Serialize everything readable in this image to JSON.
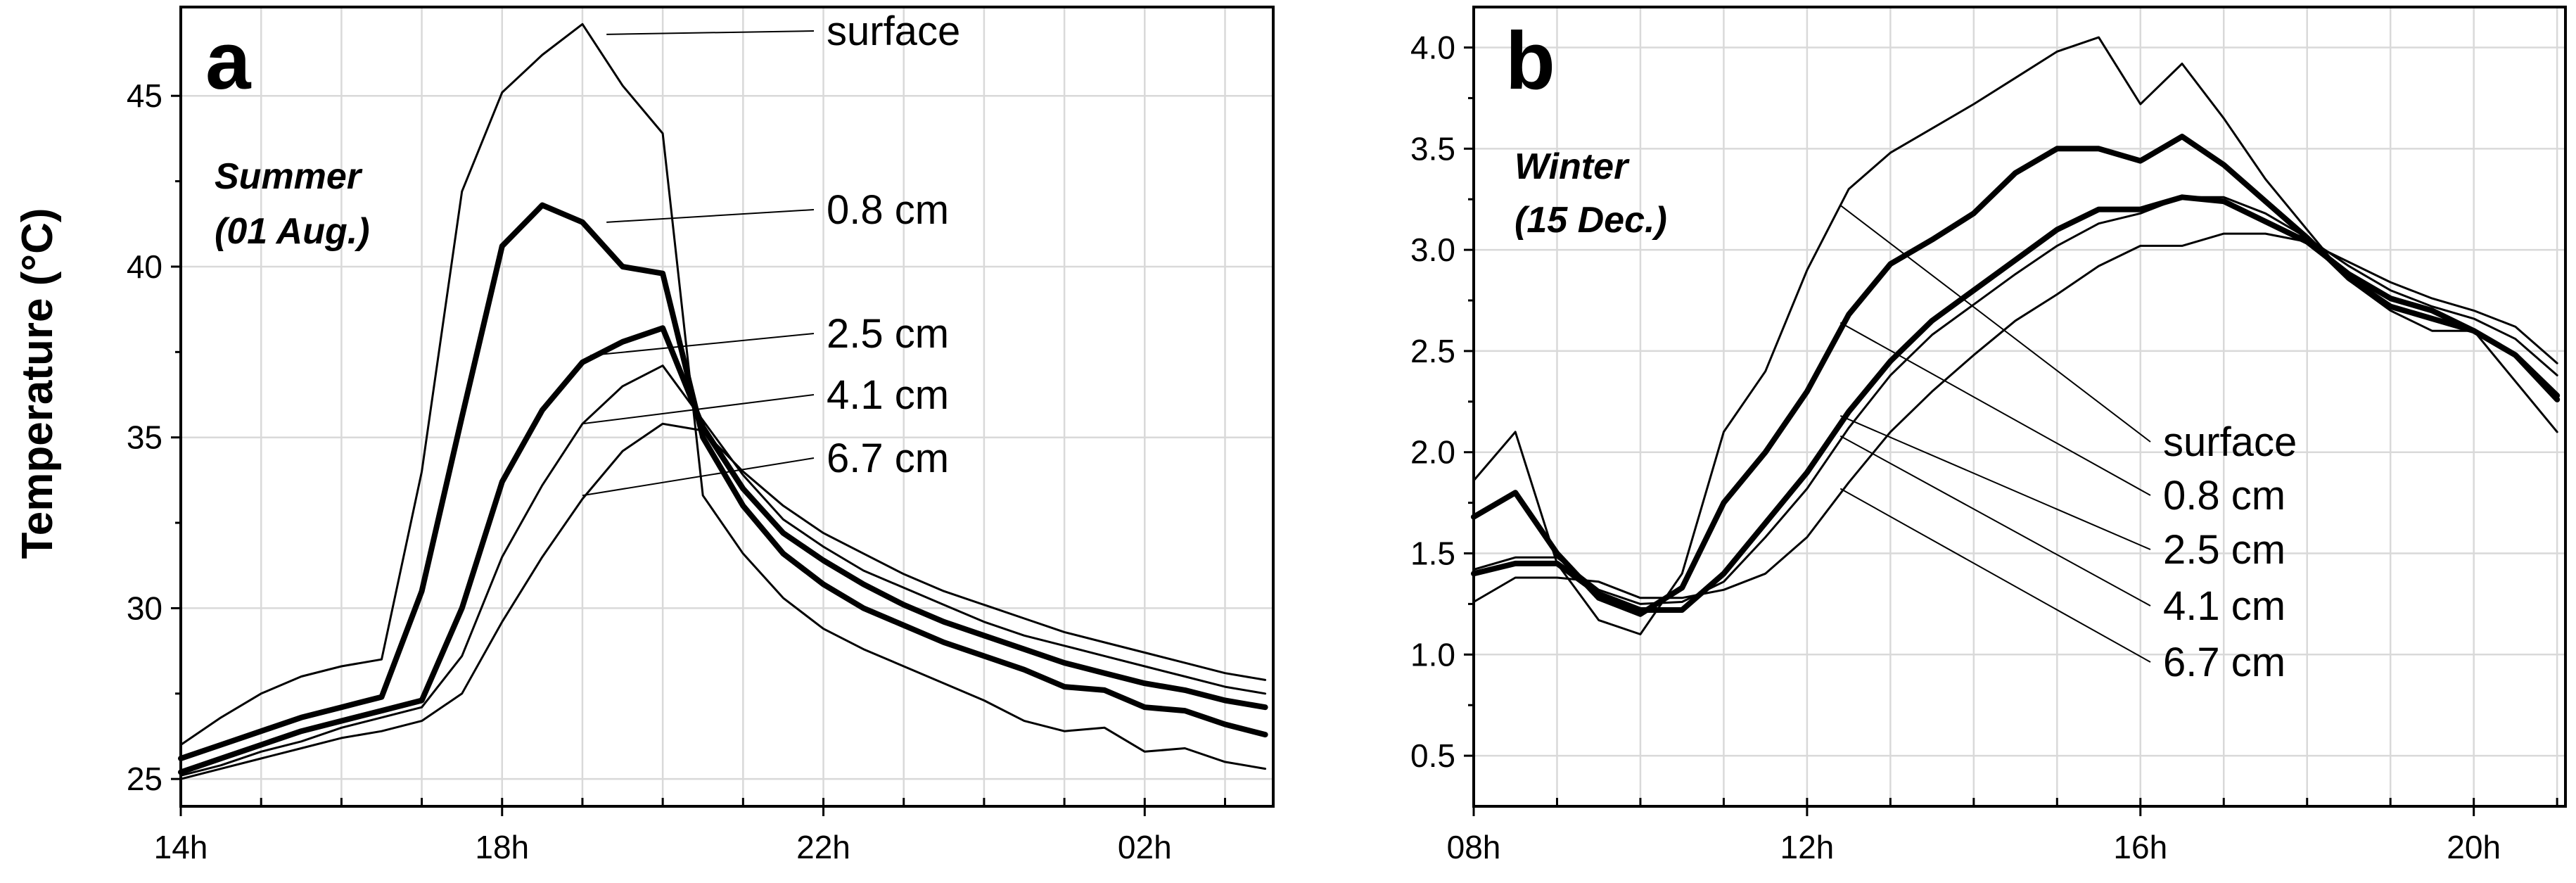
{
  "y_axis_label": "Temperature (°C)",
  "chart_data": [
    {
      "type": "line",
      "panel": "a",
      "annotation": "Summer",
      "annotation_date": "(01 Aug.)",
      "xlabel": "",
      "ylabel": "Temperature (°C)",
      "xlim": [
        14,
        27.6
      ],
      "ylim": [
        24.2,
        47.6
      ],
      "xticks": [
        14,
        18,
        22,
        26
      ],
      "xtick_labels": [
        "14h",
        "18h",
        "22h",
        "02h"
      ],
      "yticks": [
        25,
        30,
        35,
        40,
        45
      ],
      "ytick_labels": [
        "25",
        "30",
        "35",
        "40",
        "45"
      ],
      "x": [
        14,
        14.5,
        15,
        15.5,
        16,
        16.5,
        17,
        17.5,
        18,
        18.5,
        19,
        19.5,
        20,
        20.5,
        21,
        21.5,
        22,
        22.5,
        23,
        23.5,
        24,
        24.5,
        25,
        25.5,
        26,
        26.5,
        27,
        27.5
      ],
      "series": [
        {
          "name": "surface",
          "weight": "thin",
          "label_anchor": [
            19.3,
            46.8
          ],
          "values": [
            26.0,
            26.8,
            27.5,
            28.0,
            28.3,
            28.5,
            34.0,
            42.2,
            45.1,
            46.2,
            47.1,
            45.3,
            43.9,
            33.3,
            31.6,
            30.3,
            29.4,
            28.8,
            28.3,
            27.8,
            27.3,
            26.7,
            26.4,
            26.5,
            25.8,
            25.9,
            25.5,
            25.3
          ]
        },
        {
          "name": "0.8 cm",
          "weight": "bold",
          "label_anchor": [
            19.3,
            41.3
          ],
          "values": [
            25.6,
            26.0,
            26.4,
            26.8,
            27.1,
            27.4,
            30.5,
            35.6,
            40.6,
            41.8,
            41.3,
            40.0,
            39.8,
            35.0,
            33.0,
            31.6,
            30.7,
            30.0,
            29.5,
            29.0,
            28.6,
            28.2,
            27.7,
            27.6,
            27.1,
            27.0,
            26.6,
            26.3
          ]
        },
        {
          "name": "2.5 cm",
          "weight": "bold",
          "label_anchor": [
            19.1,
            37.4
          ],
          "values": [
            25.2,
            25.6,
            26.0,
            26.4,
            26.7,
            27.0,
            27.3,
            30.0,
            33.7,
            35.8,
            37.2,
            37.8,
            38.2,
            35.3,
            33.5,
            32.2,
            31.4,
            30.7,
            30.1,
            29.6,
            29.2,
            28.8,
            28.4,
            28.1,
            27.8,
            27.6,
            27.3,
            27.1
          ]
        },
        {
          "name": "4.1 cm",
          "weight": "thin",
          "label_anchor": [
            19.0,
            35.4
          ],
          "values": [
            25.1,
            25.4,
            25.8,
            26.1,
            26.5,
            26.8,
            27.1,
            28.6,
            31.5,
            33.6,
            35.4,
            36.5,
            37.1,
            35.5,
            33.9,
            32.6,
            31.8,
            31.1,
            30.6,
            30.1,
            29.6,
            29.2,
            28.9,
            28.6,
            28.3,
            28.0,
            27.7,
            27.5
          ]
        },
        {
          "name": "6.7 cm",
          "weight": "thin",
          "label_anchor": [
            19.0,
            33.3
          ],
          "values": [
            25.0,
            25.3,
            25.6,
            25.9,
            26.2,
            26.4,
            26.7,
            27.5,
            29.6,
            31.5,
            33.2,
            34.6,
            35.4,
            35.2,
            34.0,
            33.0,
            32.2,
            31.6,
            31.0,
            30.5,
            30.1,
            29.7,
            29.3,
            29.0,
            28.7,
            28.4,
            28.1,
            27.9
          ]
        }
      ]
    },
    {
      "type": "line",
      "panel": "b",
      "annotation": "Winter",
      "annotation_date": "(15 Dec.)",
      "xlabel": "",
      "ylabel": "Temperature (°C)",
      "xlim": [
        8,
        21.1
      ],
      "ylim": [
        0.25,
        4.2
      ],
      "xticks": [
        8,
        12,
        16,
        20
      ],
      "xtick_labels": [
        "08h",
        "12h",
        "16h",
        "20h"
      ],
      "yticks": [
        0.5,
        1.0,
        1.5,
        2.0,
        2.5,
        3.0,
        3.5,
        4.0
      ],
      "ytick_labels": [
        "0.5",
        "1.0",
        "1.5",
        "2.0",
        "2.5",
        "3.0",
        "3.5",
        "4.0"
      ],
      "x": [
        8,
        8.5,
        9,
        9.5,
        10,
        10.5,
        11,
        11.5,
        12,
        12.5,
        13,
        13.5,
        14,
        14.5,
        15,
        15.5,
        16,
        16.5,
        17,
        17.5,
        18,
        18.5,
        19,
        19.5,
        20,
        20.5,
        21
      ],
      "series": [
        {
          "name": "surface",
          "weight": "thin",
          "label_anchor": [
            12.4,
            3.22
          ],
          "values": [
            1.86,
            2.1,
            1.45,
            1.17,
            1.1,
            1.4,
            2.1,
            2.4,
            2.9,
            3.3,
            3.48,
            3.6,
            3.72,
            3.85,
            3.98,
            4.05,
            3.72,
            3.92,
            3.65,
            3.35,
            3.1,
            2.85,
            2.7,
            2.6,
            2.6,
            2.35,
            2.1
          ]
        },
        {
          "name": "0.8 cm",
          "weight": "bold",
          "label_anchor": [
            12.4,
            2.64
          ],
          "values": [
            1.68,
            1.8,
            1.5,
            1.28,
            1.2,
            1.33,
            1.75,
            2.0,
            2.3,
            2.68,
            2.93,
            3.05,
            3.18,
            3.38,
            3.5,
            3.5,
            3.44,
            3.56,
            3.42,
            3.24,
            3.06,
            2.86,
            2.72,
            2.66,
            2.6,
            2.48,
            2.26
          ]
        },
        {
          "name": "2.5 cm",
          "weight": "bold",
          "label_anchor": [
            12.4,
            2.18
          ],
          "values": [
            1.4,
            1.45,
            1.45,
            1.3,
            1.22,
            1.22,
            1.4,
            1.65,
            1.9,
            2.2,
            2.45,
            2.65,
            2.8,
            2.95,
            3.1,
            3.2,
            3.2,
            3.26,
            3.24,
            3.14,
            3.04,
            2.88,
            2.76,
            2.7,
            2.6,
            2.48,
            2.28
          ]
        },
        {
          "name": "4.1 cm",
          "weight": "thin",
          "label_anchor": [
            12.4,
            2.08
          ],
          "values": [
            1.42,
            1.48,
            1.48,
            1.32,
            1.25,
            1.26,
            1.36,
            1.58,
            1.82,
            2.12,
            2.38,
            2.58,
            2.73,
            2.88,
            3.02,
            3.13,
            3.18,
            3.26,
            3.26,
            3.18,
            3.06,
            2.92,
            2.8,
            2.72,
            2.66,
            2.56,
            2.38
          ]
        },
        {
          "name": "6.7 cm",
          "weight": "thin",
          "label_anchor": [
            12.4,
            1.82
          ],
          "values": [
            1.26,
            1.38,
            1.38,
            1.36,
            1.28,
            1.28,
            1.32,
            1.4,
            1.58,
            1.85,
            2.1,
            2.3,
            2.48,
            2.65,
            2.78,
            2.92,
            3.02,
            3.02,
            3.08,
            3.08,
            3.04,
            2.94,
            2.84,
            2.76,
            2.7,
            2.62,
            2.44
          ]
        }
      ]
    }
  ]
}
